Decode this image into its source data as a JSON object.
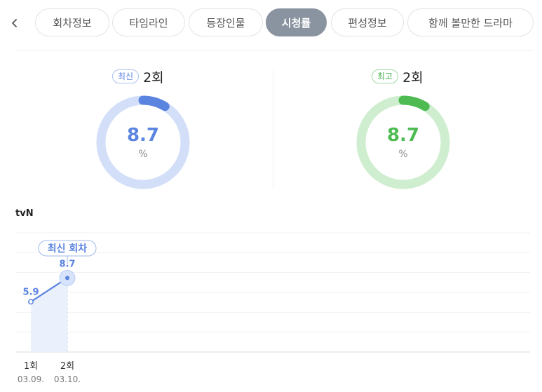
{
  "tabs": [
    {
      "label": "회차정보",
      "active": false
    },
    {
      "label": "타임라인",
      "active": false
    },
    {
      "label": "등장인물",
      "active": false
    },
    {
      "label": "시청률",
      "active": true
    },
    {
      "label": "편성정보",
      "active": false
    },
    {
      "label": "함께 볼만한 드라마",
      "active": false
    }
  ],
  "summary": {
    "latest": {
      "badge": "최신",
      "episode": "2회",
      "value": "8.7",
      "unit": "%",
      "color": "#5b84e0",
      "track_color": "#d3dff8",
      "fill_fraction": 0.087
    },
    "highest": {
      "badge": "최고",
      "episode": "2회",
      "value": "8.7",
      "unit": "%",
      "color": "#4dbb52",
      "track_color": "#cfeecf",
      "fill_fraction": 0.087
    }
  },
  "network": "tvN",
  "chart_data": {
    "type": "line",
    "network": "tvN",
    "categories": [
      "1회",
      "2회"
    ],
    "dates": [
      "03.09.",
      "03.10."
    ],
    "values": [
      5.9,
      8.7
    ],
    "value_labels": [
      "5.9",
      "8.7"
    ],
    "annotation": {
      "label": "최신 회차",
      "index": 1
    },
    "ylim": [
      0,
      14
    ],
    "grid": true,
    "color": "#5b84e0"
  }
}
